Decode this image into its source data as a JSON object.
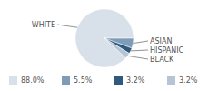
{
  "chart_data": {
    "type": "pie",
    "categories": [
      "WHITE",
      "ASIAN",
      "HISPANIC",
      "BLACK"
    ],
    "values": [
      88.0,
      5.5,
      3.2,
      3.2
    ],
    "value_labels": [
      "88.0%",
      "5.5%",
      "3.2%",
      "3.2%"
    ],
    "colors": [
      "#d8e0ea",
      "#7f9bb7",
      "#2f5a7e",
      "#b5c5d5"
    ],
    "data_labels": true
  }
}
